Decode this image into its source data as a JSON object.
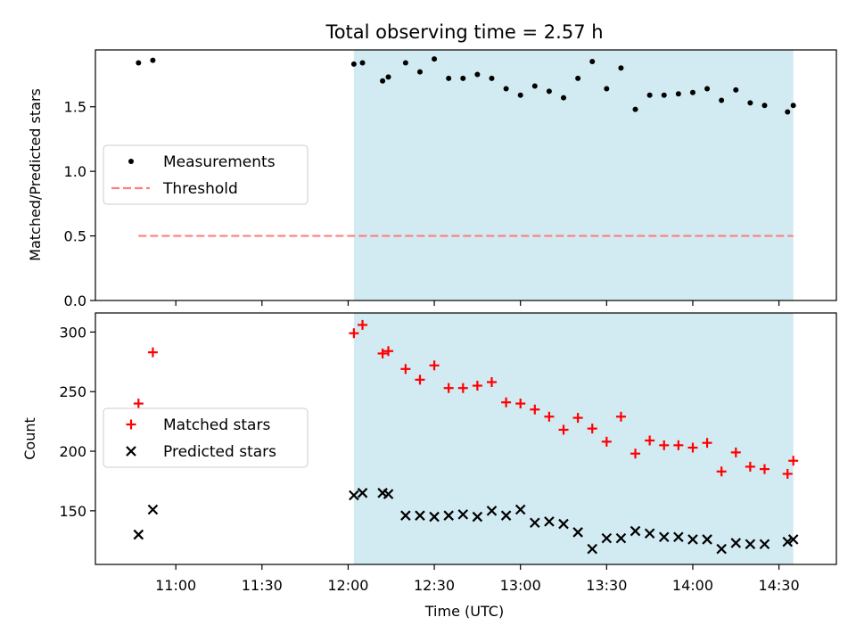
{
  "chart_data": [
    {
      "type": "scatter",
      "title": "Total observing time = 2.57 h",
      "xlabel": "",
      "ylabel": "Matched/Predicted stars",
      "ylim": [
        0,
        1.94
      ],
      "yticks": [
        "0.0",
        "0.5",
        "1.0",
        "1.5"
      ],
      "yticks_values": [
        0,
        0.5,
        1.0,
        1.5
      ],
      "shaded_region": {
        "from": "12:02",
        "to": "14:35",
        "color": "#add8e6"
      },
      "legend": {
        "placement": "center-left",
        "entries": [
          "Measurements",
          "Threshold"
        ]
      },
      "threshold": {
        "name": "Threshold",
        "value": 0.5,
        "from": "10:47",
        "to": "14:35",
        "color": "#ff7f7f"
      },
      "series": [
        {
          "name": "Measurements",
          "color": "#000000",
          "x": [
            "10:47",
            "10:52",
            "12:02",
            "12:05",
            "12:12",
            "12:14",
            "12:20",
            "12:25",
            "12:30",
            "12:35",
            "12:40",
            "12:45",
            "12:50",
            "12:55",
            "13:00",
            "13:05",
            "13:10",
            "13:15",
            "13:20",
            "13:25",
            "13:30",
            "13:35",
            "13:40",
            "13:45",
            "13:50",
            "13:55",
            "14:00",
            "14:05",
            "14:10",
            "14:15",
            "14:20",
            "14:25",
            "14:33",
            "14:35"
          ],
          "values": [
            1.84,
            1.86,
            1.83,
            1.84,
            1.7,
            1.73,
            1.84,
            1.77,
            1.87,
            1.72,
            1.72,
            1.75,
            1.72,
            1.64,
            1.59,
            1.66,
            1.62,
            1.57,
            1.72,
            1.85,
            1.64,
            1.8,
            1.48,
            1.59,
            1.59,
            1.6,
            1.61,
            1.64,
            1.55,
            1.63,
            1.53,
            1.51,
            1.46,
            1.51
          ]
        }
      ]
    },
    {
      "type": "scatter",
      "title": "",
      "xlabel": "Time (UTC)",
      "ylabel": "Count",
      "ylim": [
        105,
        316
      ],
      "yticks": [
        "150",
        "200",
        "250",
        "300"
      ],
      "yticks_values": [
        150,
        200,
        250,
        300
      ],
      "xticks": [
        "11:00",
        "11:30",
        "12:00",
        "12:30",
        "13:00",
        "13:30",
        "14:00",
        "14:30"
      ],
      "xlim": [
        "10:32",
        "14:50"
      ],
      "shaded_region": {
        "from": "12:02",
        "to": "14:35",
        "color": "#add8e6"
      },
      "legend": {
        "placement": "center-left",
        "entries": [
          "Matched stars",
          "Predicted stars"
        ]
      },
      "series": [
        {
          "name": "Matched stars",
          "marker": "+",
          "color": "#ff0000",
          "x": [
            "10:47",
            "10:52",
            "12:02",
            "12:05",
            "12:12",
            "12:14",
            "12:20",
            "12:25",
            "12:30",
            "12:35",
            "12:40",
            "12:45",
            "12:50",
            "12:55",
            "13:00",
            "13:05",
            "13:10",
            "13:15",
            "13:20",
            "13:25",
            "13:30",
            "13:35",
            "13:40",
            "13:45",
            "13:50",
            "13:55",
            "14:00",
            "14:05",
            "14:10",
            "14:15",
            "14:20",
            "14:25",
            "14:33",
            "14:35"
          ],
          "values": [
            240,
            283,
            299,
            306,
            282,
            284,
            269,
            260,
            272,
            253,
            253,
            255,
            258,
            241,
            240,
            235,
            229,
            218,
            228,
            219,
            208,
            229,
            198,
            209,
            205,
            205,
            203,
            207,
            183,
            199,
            187,
            185,
            181,
            192
          ]
        },
        {
          "name": "Predicted stars",
          "marker": "x",
          "color": "#000000",
          "x": [
            "10:47",
            "10:52",
            "12:02",
            "12:05",
            "12:12",
            "12:14",
            "12:20",
            "12:25",
            "12:30",
            "12:35",
            "12:40",
            "12:45",
            "12:50",
            "12:55",
            "13:00",
            "13:05",
            "13:10",
            "13:15",
            "13:20",
            "13:25",
            "13:30",
            "13:35",
            "13:40",
            "13:45",
            "13:50",
            "13:55",
            "14:00",
            "14:05",
            "14:10",
            "14:15",
            "14:20",
            "14:25",
            "14:33",
            "14:35"
          ],
          "values": [
            130,
            151,
            163,
            165,
            165,
            164,
            146,
            146,
            145,
            146,
            147,
            145,
            150,
            146,
            151,
            140,
            141,
            139,
            132,
            118,
            127,
            127,
            133,
            131,
            128,
            128,
            126,
            126,
            118,
            123,
            122,
            122,
            124,
            126
          ]
        }
      ]
    }
  ]
}
